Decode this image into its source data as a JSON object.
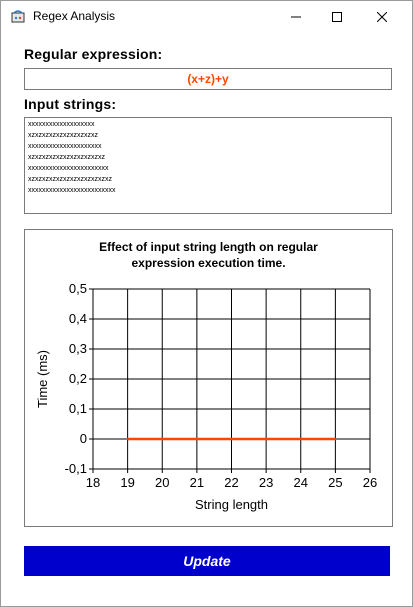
{
  "window": {
    "title": "Regex Analysis",
    "minimize_glyph": "—",
    "maximize_glyph": "☐",
    "close_glyph": "✕"
  },
  "regex": {
    "label": "Regular expression:",
    "value": "(x+z)+y",
    "color": "#ff4500"
  },
  "inputs": {
    "label": "Input strings:",
    "lines": [
      "xxxxxxxxxxxxxxxxxxx",
      "xzxzxzxzxzxzxzxzxzxz",
      "xxxxxxxxxxxxxxxxxxxxx",
      "xzxzxzxzxzxzxzxzxzxzxz",
      "xxxxxxxxxxxxxxxxxxxxxxx",
      "xzxzxzxzxzxzxzxzxzxzxzxz",
      "xxxxxxxxxxxxxxxxxxxxxxxxx"
    ]
  },
  "chart_data": {
    "type": "line",
    "title_lines": [
      "Effect of input string length on regular",
      "expression execution time."
    ],
    "xlabel": "String length",
    "ylabel": "Time (ms)",
    "xlim": [
      18,
      26
    ],
    "ylim": [
      -0.1,
      0.5
    ],
    "xticks": [
      18,
      19,
      20,
      21,
      22,
      23,
      24,
      25,
      26
    ],
    "yticks": [
      "0,5",
      "0,4",
      "0,3",
      "0,2",
      "0,1",
      "0",
      "-0,1"
    ],
    "ytick_values": [
      0.5,
      0.4,
      0.3,
      0.2,
      0.1,
      0,
      -0.1
    ],
    "grid": true,
    "series": [
      {
        "color": "#ff4500",
        "x": [
          19,
          20,
          21,
          22,
          23,
          24,
          25
        ],
        "y": [
          0,
          0,
          0,
          0,
          0,
          0,
          0
        ]
      }
    ]
  },
  "update_button": {
    "label": "Update",
    "color": "#0000cd"
  }
}
